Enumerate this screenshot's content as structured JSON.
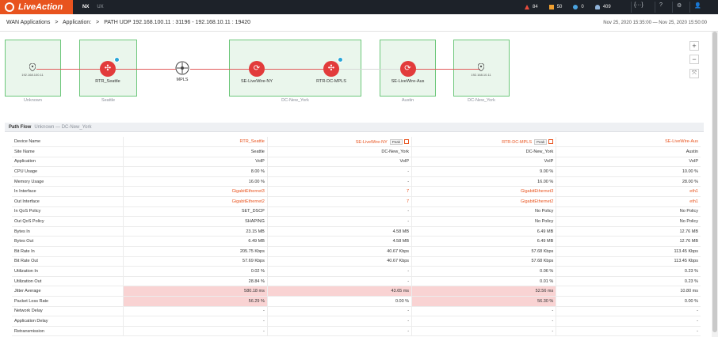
{
  "app": {
    "logo": "LiveAction",
    "tabs": [
      "NX",
      "UX"
    ]
  },
  "alerts": [
    {
      "icon": "triangle-alert-icon",
      "count": "84",
      "color": "#e84c3d"
    },
    {
      "icon": "square-alert-icon",
      "count": "50",
      "color": "#f0a030"
    },
    {
      "icon": "circle-info-icon",
      "count": "0",
      "color": "#4aa3df"
    },
    {
      "icon": "person-icon",
      "count": "409",
      "color": "#8fb3d9"
    }
  ],
  "toolbar": {
    "expand": "{···}",
    "help": "?",
    "settings": "⚙",
    "user": "👤"
  },
  "breadcrumb": [
    "WAN Applications",
    ">",
    "Application:",
    ">",
    "PATH UDP 192.168.100.11 : 31196 - 192.168.10.11 : 19420"
  ],
  "daterange": "Nov 25, 2020 15:35:00 — Nov 25, 2020 15:50:00",
  "topology": {
    "groups": [
      "Unknown",
      "Seattle",
      "DC-New_York",
      "Austin",
      "DC-New_York"
    ],
    "nodes": [
      "192.168.100.11",
      "RTR_Seattle",
      "MPLS",
      "SE-LiveWire-NY",
      "RTR-DC-MPLS",
      "SE-LiveWire-Aus",
      "192.168.10.11"
    ]
  },
  "zoom": {
    "in": "+",
    "out": "−",
    "fit": "⤧"
  },
  "path_flow": {
    "title": "Path Flow",
    "subtitle": "Unknown — DC-New_York"
  },
  "table": {
    "peak": "Peak",
    "columns": [
      "RTR_Seattle",
      "SE-LiveWire-NY",
      "RTR-DC-MPLS",
      "SE-LiveWire-Aus"
    ],
    "rows": [
      {
        "label": "Device Name",
        "values": [
          "RTR_Seattle",
          "SE-LiveWire-NY",
          "RTR-DC-MPLS",
          "SE-LiveWire-Aus"
        ],
        "style": "link",
        "peak": [
          false,
          true,
          true,
          false
        ]
      },
      {
        "label": "Site Name",
        "values": [
          "Seattle",
          "DC-New_York",
          "DC-New_York",
          "Austin"
        ]
      },
      {
        "label": "Application",
        "values": [
          "VoIP",
          "VoIP",
          "VoIP",
          "VoIP"
        ]
      },
      {
        "label": "CPU Usage",
        "values": [
          "8.00 %",
          "-",
          "9.00 %",
          "10.00 %"
        ]
      },
      {
        "label": "Memory Usage",
        "values": [
          "16.00 %",
          "-",
          "16.00 %",
          "28.00 %"
        ]
      },
      {
        "label": "In Interface",
        "values": [
          "GigabitEthernet3",
          "7",
          "GigabitEthernet3",
          "eth1"
        ],
        "style": "link"
      },
      {
        "label": "Out Interface",
        "values": [
          "GigabitEthernet2",
          "7",
          "GigabitEthernet2",
          "eth1"
        ],
        "style": "link"
      },
      {
        "label": "In QoS Policy",
        "values": [
          "SET_DSCP",
          "-",
          "No Policy",
          "No Policy"
        ]
      },
      {
        "label": "Out QoS Policy",
        "values": [
          "SHAPING",
          "-",
          "No Policy",
          "No Policy"
        ]
      },
      {
        "label": "Bytes In",
        "values": [
          "23.15 MB",
          "4.58 MB",
          "6.49 MB",
          "12.76 MB"
        ]
      },
      {
        "label": "Bytes Out",
        "values": [
          "6.49 MB",
          "4.58 MB",
          "6.49 MB",
          "12.76 MB"
        ]
      },
      {
        "label": "Bit Rate In",
        "values": [
          "205.75 Kbps",
          "40.67 Kbps",
          "57.68 Kbps",
          "113.45 Kbps"
        ]
      },
      {
        "label": "Bit Rate Out",
        "values": [
          "57.69 Kbps",
          "40.67 Kbps",
          "57.68 Kbps",
          "113.45 Kbps"
        ]
      },
      {
        "label": "Utilization In",
        "values": [
          "0.02 %",
          "-",
          "0.06 %",
          "0.23 %"
        ]
      },
      {
        "label": "Utilization Out",
        "values": [
          "28.84 %",
          "-",
          "0.01 %",
          "0.23 %"
        ]
      },
      {
        "label": "Jitter Average",
        "values": [
          "580.18 ms",
          "43.65 ms",
          "52.56 ms",
          "10.80 ms"
        ],
        "highlight": [
          true,
          true,
          true,
          false
        ]
      },
      {
        "label": "Packet Loss Rate",
        "values": [
          "56.29 %",
          "0.00 %",
          "56.30 %",
          "0.00 %"
        ],
        "highlight": [
          true,
          false,
          true,
          false
        ]
      },
      {
        "label": "Network Delay",
        "values": [
          "-",
          "-",
          "-",
          "-"
        ]
      },
      {
        "label": "Application Delay",
        "values": [
          "-",
          "-",
          "-",
          "-"
        ]
      },
      {
        "label": "Retransmission",
        "values": [
          "-",
          "-",
          "-",
          "-"
        ]
      }
    ]
  },
  "colors": {
    "brand": "#e8531e",
    "topbar": "#1d2229",
    "group_border": "#6cc77a",
    "router": "#e23b3b",
    "highlight": "#f9d3d3"
  }
}
